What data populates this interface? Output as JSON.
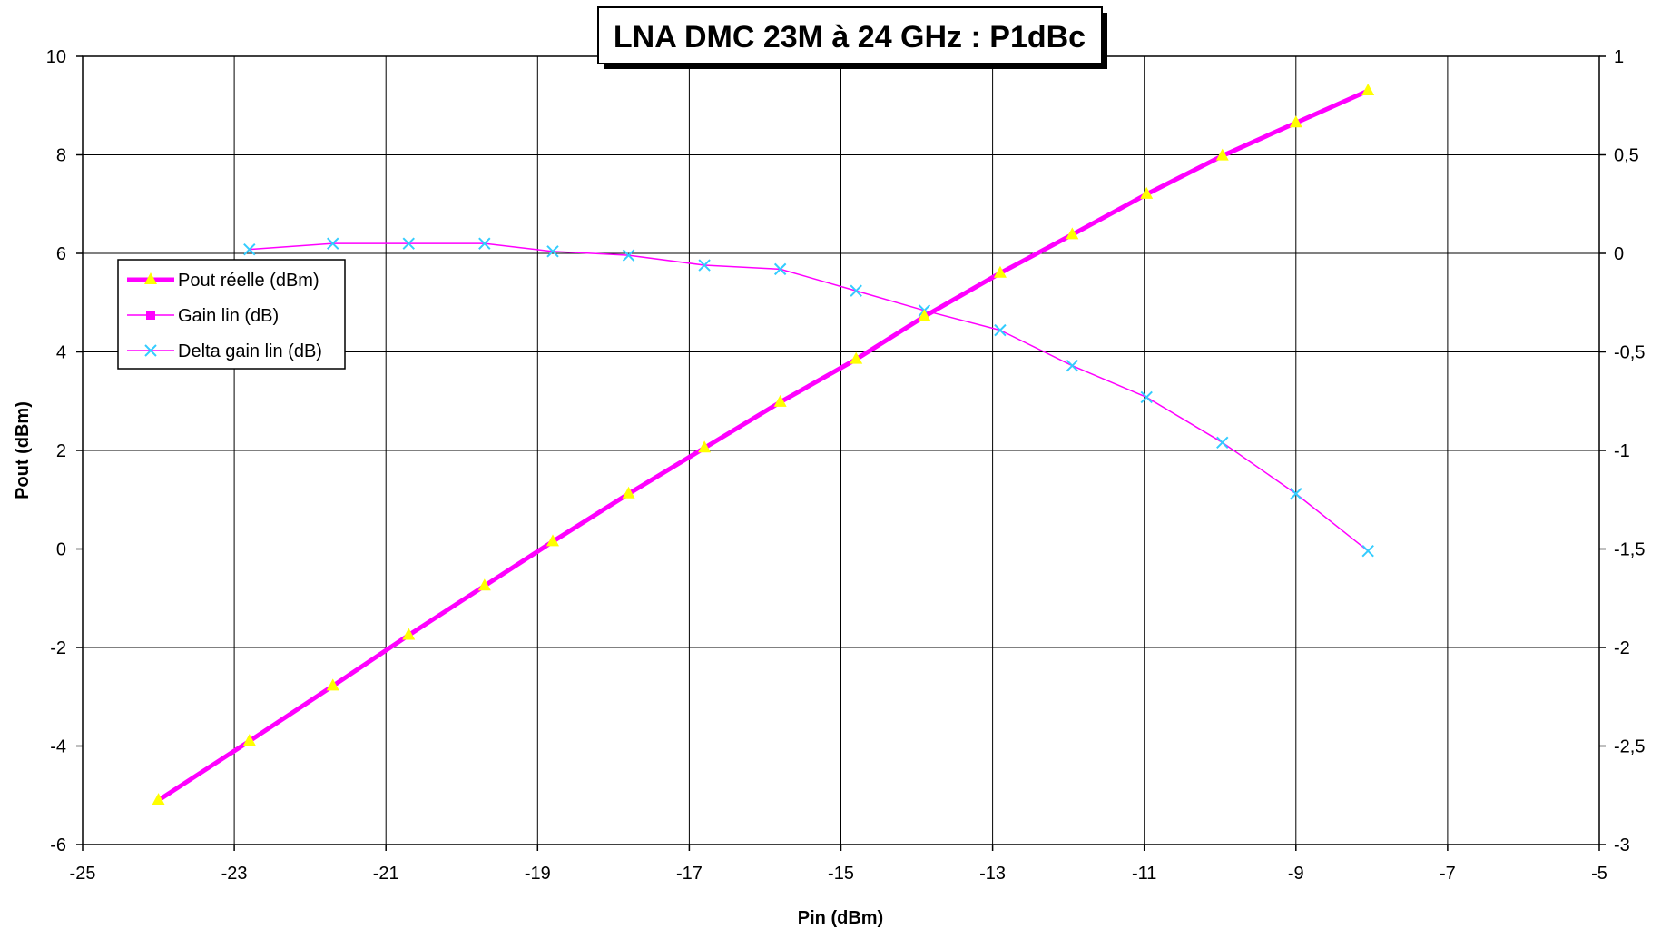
{
  "chart_data": {
    "type": "line",
    "title": "LNA DMC 23M à 24 GHz : P1dBc",
    "xlabel": "Pin (dBm)",
    "ylabel": "Pout (dBm)",
    "xlim": [
      -25,
      -5
    ],
    "ylim": [
      -6,
      10
    ],
    "y2lim": [
      -3,
      1
    ],
    "xticks": [
      "-25",
      "-23",
      "-21",
      "-19",
      "-17",
      "-15",
      "-13",
      "-11",
      "-9",
      "-7",
      "-5"
    ],
    "yticks": [
      "-6",
      "-4",
      "-2",
      "0",
      "2",
      "4",
      "6",
      "8",
      "10"
    ],
    "y2ticks": [
      "-3",
      "-2,5",
      "-2",
      "-1,5",
      "-1",
      "-0,5",
      "0",
      "0,5",
      "1"
    ],
    "grid": true,
    "legend_position": "left",
    "series": [
      {
        "name": "Pout réelle (dBm)",
        "axis": "left",
        "color": "#FF00FF",
        "marker": "triangle",
        "marker_color": "#FFFF00",
        "line_width": 5,
        "x": [
          -24.0,
          -22.8,
          -21.7,
          -20.7,
          -19.7,
          -18.8,
          -17.8,
          -16.8,
          -15.8,
          -14.8,
          -13.9,
          -12.9,
          -11.95,
          -10.97,
          -9.97,
          -9.0,
          -8.05
        ],
        "values": [
          -5.1,
          -3.9,
          -2.78,
          -1.75,
          -0.75,
          0.15,
          1.12,
          2.05,
          2.98,
          3.85,
          4.72,
          5.6,
          6.38,
          7.2,
          7.98,
          8.65,
          9.3
        ]
      },
      {
        "name": "Gain lin (dB)",
        "axis": "right",
        "color": "#FF00FF",
        "marker": "square",
        "marker_color": "#FF00FF",
        "line_width": 1.5,
        "x": [],
        "values": []
      },
      {
        "name": "Delta gain lin (dB)",
        "axis": "right",
        "color": "#FF00FF",
        "marker": "x",
        "marker_color": "#33CCFF",
        "line_width": 1.5,
        "x": [
          -22.8,
          -21.7,
          -20.7,
          -19.7,
          -18.8,
          -17.8,
          -16.8,
          -15.8,
          -14.8,
          -13.9,
          -12.9,
          -11.95,
          -10.97,
          -9.97,
          -9.0,
          -8.05
        ],
        "values": [
          0.02,
          0.05,
          0.05,
          0.05,
          0.01,
          -0.01,
          -0.06,
          -0.08,
          -0.19,
          -0.29,
          -0.39,
          -0.57,
          -0.73,
          -0.96,
          -1.22,
          -1.51
        ]
      }
    ]
  }
}
